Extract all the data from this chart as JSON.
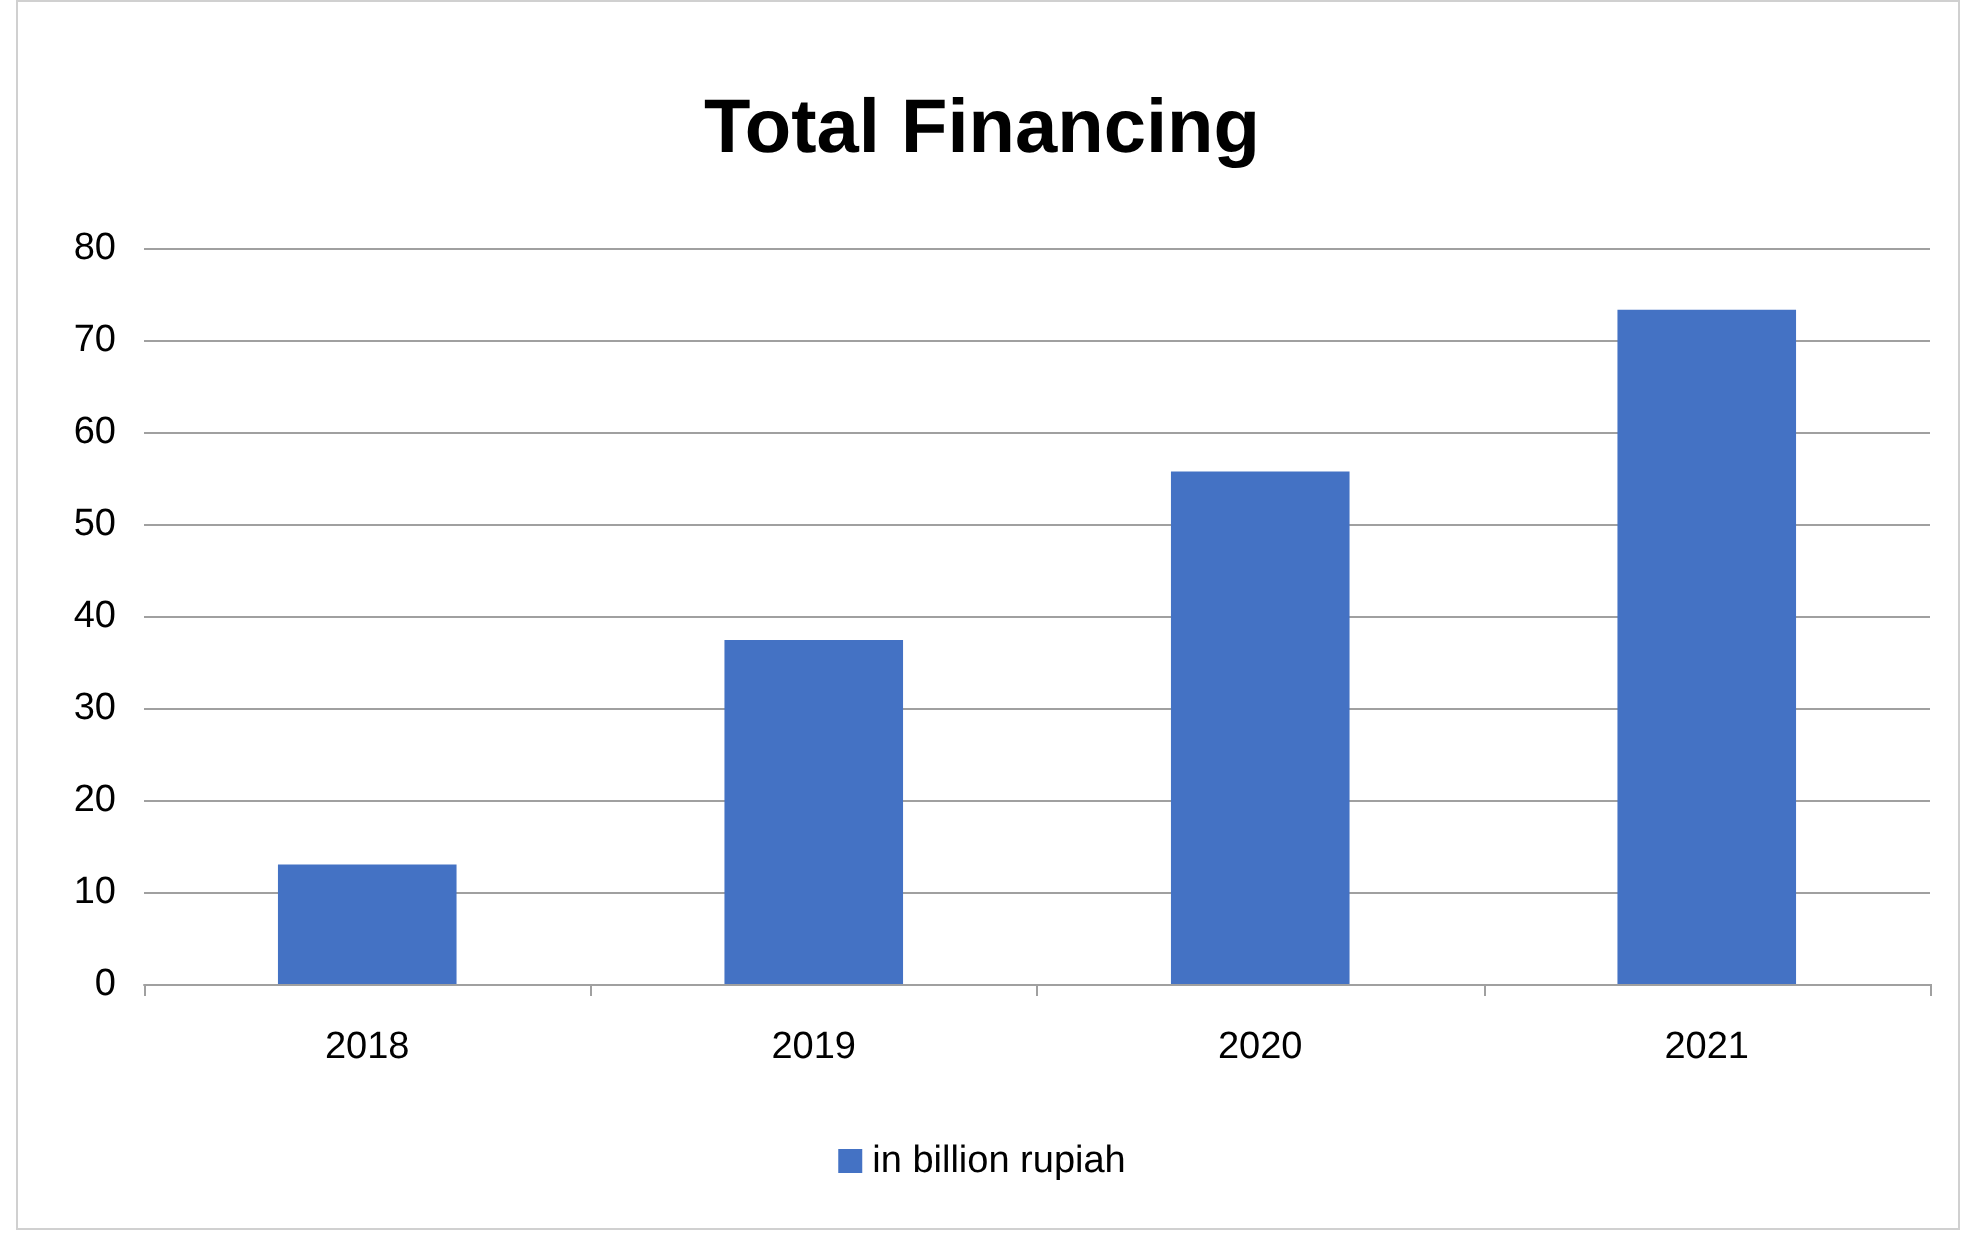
{
  "chart_data": {
    "type": "bar",
    "title": "Total Financing",
    "categories": [
      "2018",
      "2019",
      "2020",
      "2021"
    ],
    "series": [
      {
        "name": "in billion rupiah",
        "color": "#4472c4",
        "values": [
          13,
          37.4,
          55.7,
          73.3
        ]
      }
    ],
    "ylim": [
      0,
      80
    ],
    "yticks": [
      0,
      10,
      20,
      30,
      40,
      50,
      60,
      70,
      80
    ],
    "grid": "y",
    "legend": "bottom"
  }
}
